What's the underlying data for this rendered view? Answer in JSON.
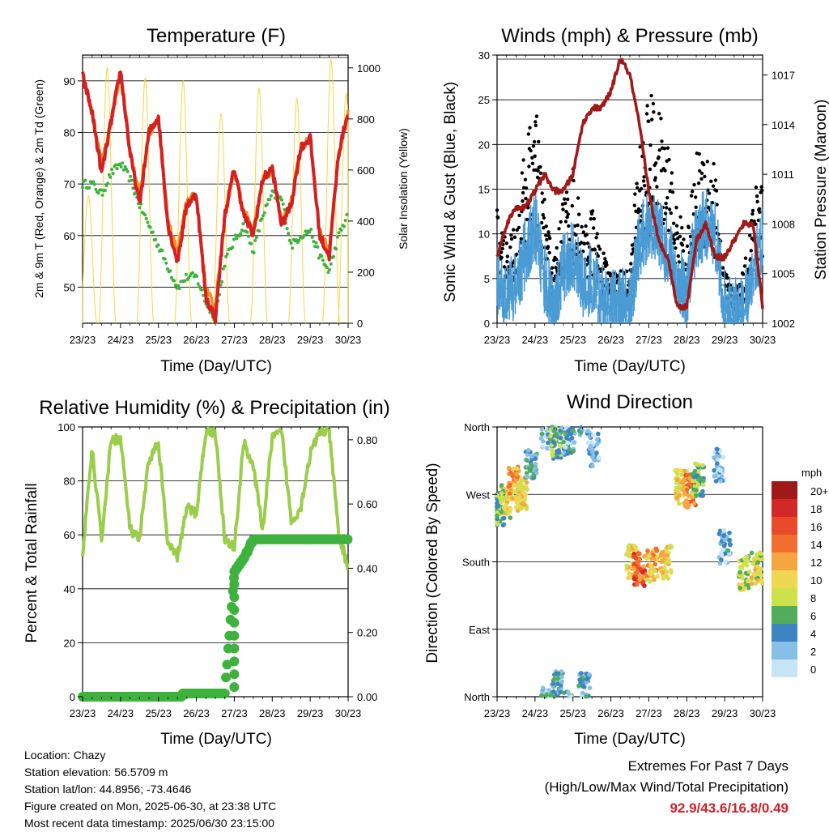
{
  "colors": {
    "temp_2m": "#d42020",
    "temp_9m": "#f28c28",
    "dewpoint": "#3db23d",
    "solar": "#f5d742",
    "wind": "#4a9ad4",
    "gust": "#000000",
    "pressure": "#a01818",
    "rh": "#9acd4a",
    "precip": "#3db23d",
    "extremes": "#d0202a"
  },
  "day_ticks": [
    "23/23",
    "24/23",
    "25/23",
    "26/23",
    "27/23",
    "28/23",
    "29/23",
    "30/23"
  ],
  "chart_data": [
    {
      "type": "line",
      "title": "Temperature (F)",
      "xlabel": "Time (Day/UTC)",
      "ylabel": "2m & 9m T (Red, Orange) & 2m Td (Green)",
      "y2label": "Solar Insolation (Yellow)",
      "ylim": [
        43,
        95
      ],
      "yticks": [
        50,
        60,
        70,
        80,
        90
      ],
      "y2lim": [
        0,
        1050
      ],
      "y2ticks": [
        0,
        200,
        400,
        600,
        800,
        1000
      ],
      "x": [
        0,
        0.25,
        0.5,
        0.75,
        1.0,
        1.25,
        1.5,
        1.75,
        2.0,
        2.25,
        2.5,
        2.75,
        3.0,
        3.25,
        3.5,
        3.75,
        4.0,
        4.25,
        4.5,
        4.75,
        5.0,
        5.25,
        5.5,
        5.75,
        6.0,
        6.25,
        6.5,
        6.75,
        7.0
      ],
      "series": [
        {
          "name": "2m T",
          "values": [
            91,
            84,
            72,
            82,
            92,
            76,
            66,
            80,
            83,
            62,
            55,
            66,
            68,
            48,
            44,
            64,
            73,
            64,
            60,
            71,
            73,
            62,
            66,
            77,
            79,
            60,
            56,
            76,
            84
          ]
        },
        {
          "name": "9m T",
          "values": [
            90,
            83,
            73,
            81,
            91,
            76,
            67,
            79,
            82,
            62,
            56,
            66,
            67,
            49,
            45,
            63,
            72,
            64,
            60,
            70,
            72,
            62,
            66,
            76,
            78,
            60,
            56,
            75,
            83
          ]
        },
        {
          "name": "2m Td",
          "values": [
            70,
            70,
            68,
            72,
            74,
            71,
            66,
            62,
            58,
            54,
            50,
            52,
            52,
            47,
            44,
            55,
            59,
            62,
            57,
            64,
            68,
            67,
            58,
            60,
            61,
            56,
            53,
            60,
            64
          ]
        },
        {
          "name": "Solar Insolation",
          "axis": "right",
          "day_peaks": [
            [
              0.15,
              500
            ],
            [
              0.65,
              1000
            ],
            [
              1.65,
              960
            ],
            [
              2.65,
              950
            ],
            [
              3.65,
              820
            ],
            [
              4.65,
              920
            ],
            [
              5.65,
              880
            ],
            [
              6.55,
              1030
            ],
            [
              6.95,
              900
            ]
          ]
        }
      ]
    },
    {
      "type": "line",
      "title": "Winds (mph) & Pressure (mb)",
      "xlabel": "Time (Day/UTC)",
      "ylabel": "Sonic Wind & Gust (Blue, Black)",
      "y2label": "Station Pressure (Maroon)",
      "ylim": [
        0,
        30
      ],
      "yticks": [
        0,
        5,
        10,
        15,
        20,
        25,
        30
      ],
      "y2lim": [
        1002,
        1018.2
      ],
      "y2ticks": [
        1002,
        1005,
        1008,
        1011,
        1014,
        1017
      ],
      "x": [
        0,
        0.25,
        0.5,
        0.75,
        1.0,
        1.25,
        1.5,
        1.75,
        2.0,
        2.25,
        2.5,
        2.75,
        3.0,
        3.25,
        3.5,
        3.75,
        4.0,
        4.25,
        4.5,
        4.75,
        5.0,
        5.25,
        5.5,
        5.75,
        6.0,
        6.25,
        6.5,
        6.75,
        7.0
      ],
      "series": [
        {
          "name": "Wind",
          "values": [
            5,
            3,
            4,
            8,
            11,
            5,
            2,
            6,
            8,
            4,
            5,
            3,
            2,
            2,
            2,
            9,
            11,
            10,
            8,
            5,
            3,
            10,
            11,
            10,
            2,
            1,
            2,
            6,
            10
          ]
        },
        {
          "name": "Gust",
          "values": [
            11,
            8,
            10,
            17,
            21,
            12,
            6,
            12,
            15,
            9,
            11,
            7,
            5,
            5,
            5,
            18,
            22,
            20,
            17,
            11,
            8,
            16,
            18,
            15,
            5,
            3,
            5,
            12,
            15
          ]
        },
        {
          "name": "Station Pressure",
          "axis": "right",
          "values": [
            1006,
            1008,
            1009,
            1009,
            1010,
            1011,
            1010,
            1010,
            1011,
            1014,
            1015,
            1015,
            1016,
            1018,
            1017,
            1014,
            1010,
            1007,
            1006,
            1003,
            1003,
            1007,
            1008,
            1006,
            1006,
            1007,
            1008,
            1008,
            1003
          ]
        }
      ]
    },
    {
      "type": "line",
      "title": "Relative Humidity (%) & Precipitation (in)",
      "xlabel": "Time (Day/UTC)",
      "ylabel": "Percent & Total Rainfall",
      "ylim": [
        0,
        100
      ],
      "yticks": [
        0,
        20,
        40,
        60,
        80,
        100
      ],
      "y2lim": [
        0,
        0.84
      ],
      "y2ticks": [
        0.0,
        0.2,
        0.4,
        0.6,
        0.8
      ],
      "y2ticklabels": [
        "0.00",
        "0.20",
        "0.40",
        "0.60",
        "0.80"
      ],
      "x": [
        0,
        0.25,
        0.5,
        0.75,
        1.0,
        1.25,
        1.5,
        1.75,
        2.0,
        2.25,
        2.5,
        2.75,
        3.0,
        3.25,
        3.5,
        3.75,
        4.0,
        4.25,
        4.5,
        4.75,
        5.0,
        5.25,
        5.5,
        5.75,
        6.0,
        6.25,
        6.5,
        6.75,
        7.0
      ],
      "series": [
        {
          "name": "Relative Humidity",
          "values": [
            52,
            92,
            58,
            95,
            96,
            62,
            58,
            88,
            94,
            56,
            52,
            70,
            68,
            99,
            98,
            58,
            55,
            95,
            85,
            62,
            96,
            98,
            65,
            70,
            90,
            98,
            99,
            60,
            48
          ]
        },
        {
          "name": "Total Precipitation",
          "axis": "right",
          "values": [
            0,
            0,
            0,
            0,
            0,
            0,
            0,
            0,
            0,
            0,
            0,
            0.01,
            0.01,
            0.01,
            0.01,
            0.01,
            0.39,
            0.43,
            0.49,
            0.49,
            0.49,
            0.49,
            0.49,
            0.49,
            0.49,
            0.49,
            0.49,
            0.49,
            0.49
          ]
        }
      ]
    },
    {
      "type": "scatter",
      "title": "Wind Direction",
      "xlabel": "Time (Day/UTC)",
      "ylabel": "Direction (Colored By Speed)",
      "ylim": [
        0,
        360
      ],
      "yticks": [
        0,
        90,
        180,
        270,
        360
      ],
      "yticklabels": [
        "North",
        "East",
        "South",
        "West",
        "North"
      ],
      "legend_title": "mph",
      "legend_labels": [
        "20+",
        "18",
        "16",
        "14",
        "12",
        "10",
        "8",
        "6",
        "4",
        "2",
        "0"
      ],
      "legend_colors": [
        "#a01818",
        "#d12828",
        "#e84a2a",
        "#f26e2e",
        "#f6a640",
        "#efd653",
        "#cde24a",
        "#52ad5a",
        "#3d85c2",
        "#86c0e6",
        "#c6e6f6"
      ],
      "clusters": [
        {
          "x": 0.05,
          "dir": 250,
          "speed": 6
        },
        {
          "x": 0.25,
          "dir": 260,
          "speed": 9
        },
        {
          "x": 0.45,
          "dir": 285,
          "speed": 12
        },
        {
          "x": 0.65,
          "dir": 270,
          "speed": 10
        },
        {
          "x": 0.9,
          "dir": 310,
          "speed": 4
        },
        {
          "x": 1.3,
          "dir": 350,
          "speed": 3
        },
        {
          "x": 1.55,
          "dir": 340,
          "speed": 6
        },
        {
          "x": 1.6,
          "dir": 12,
          "speed": 4
        },
        {
          "x": 1.9,
          "dir": 345,
          "speed": 3
        },
        {
          "x": 2.3,
          "dir": 10,
          "speed": 3
        },
        {
          "x": 2.55,
          "dir": 330,
          "speed": 2
        },
        {
          "x": 3.55,
          "dir": 180,
          "speed": 10
        },
        {
          "x": 3.75,
          "dir": 170,
          "speed": 15
        },
        {
          "x": 4.1,
          "dir": 175,
          "speed": 11
        },
        {
          "x": 4.45,
          "dir": 180,
          "speed": 10
        },
        {
          "x": 4.85,
          "dir": 280,
          "speed": 10
        },
        {
          "x": 5.1,
          "dir": 275,
          "speed": 13
        },
        {
          "x": 5.3,
          "dir": 290,
          "speed": 6
        },
        {
          "x": 5.85,
          "dir": 310,
          "speed": 2
        },
        {
          "x": 6.0,
          "dir": 200,
          "speed": 3
        },
        {
          "x": 6.5,
          "dir": 165,
          "speed": 8
        },
        {
          "x": 6.85,
          "dir": 170,
          "speed": 9
        }
      ]
    }
  ],
  "info": {
    "location": "Location: Chazy",
    "elevation": "Station elevation: 56.5709 m",
    "latlon": "Station lat/lon: 44.8956; -73.4646",
    "created": "Figure created on Mon, 2025-06-30, at 23:38 UTC",
    "timestamp": "Most recent data timestamp: 2025/06/30 23:15:00"
  },
  "extremes": {
    "title": "Extremes For Past 7 Days",
    "subtitle": "(High/Low/Max Wind/Total Precipitation)",
    "values": "92.9/43.6/16.8/0.49"
  }
}
